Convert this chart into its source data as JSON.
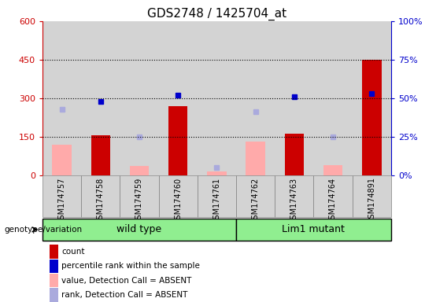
{
  "title": "GDS2748 / 1425704_at",
  "samples": [
    "GSM174757",
    "GSM174758",
    "GSM174759",
    "GSM174760",
    "GSM174761",
    "GSM174762",
    "GSM174763",
    "GSM174764",
    "GSM174891"
  ],
  "count_present": [
    null,
    155,
    null,
    270,
    null,
    null,
    163,
    null,
    450
  ],
  "count_absent": [
    120,
    null,
    35,
    null,
    15,
    130,
    null,
    38,
    null
  ],
  "rank_present_pct": [
    null,
    48,
    null,
    52,
    null,
    null,
    51,
    null,
    53
  ],
  "rank_absent_pct": [
    43,
    null,
    25,
    null,
    5,
    41,
    null,
    25,
    null
  ],
  "count_color": "#cc0000",
  "rank_color": "#0000cc",
  "count_absent_color": "#ffaaaa",
  "rank_absent_color": "#aaaadd",
  "ylim_left": [
    0,
    600
  ],
  "ylim_right": [
    0,
    100
  ],
  "yticks_left": [
    0,
    150,
    300,
    450,
    600
  ],
  "yticks_right": [
    0,
    25,
    50,
    75,
    100
  ],
  "ytick_labels_left": [
    "0",
    "150",
    "300",
    "450",
    "600"
  ],
  "ytick_labels_right": [
    "0%",
    "25%",
    "50%",
    "75%",
    "100%"
  ],
  "hlines": [
    150,
    300,
    450
  ],
  "bar_width": 0.5,
  "background_color": "#ffffff",
  "plot_bg_color": "#ffffff",
  "col_bg_color": "#d3d3d3",
  "title_fontsize": 11,
  "genotype_label": "genotype/variation",
  "wild_type_label": "wild type",
  "lim1_label": "Lim1 mutant",
  "wild_type_count": 5,
  "lim1_count": 4,
  "legend_items": [
    {
      "label": "count",
      "color": "#cc0000"
    },
    {
      "label": "percentile rank within the sample",
      "color": "#0000cc"
    },
    {
      "label": "value, Detection Call = ABSENT",
      "color": "#ffaaaa"
    },
    {
      "label": "rank, Detection Call = ABSENT",
      "color": "#aaaadd"
    }
  ]
}
